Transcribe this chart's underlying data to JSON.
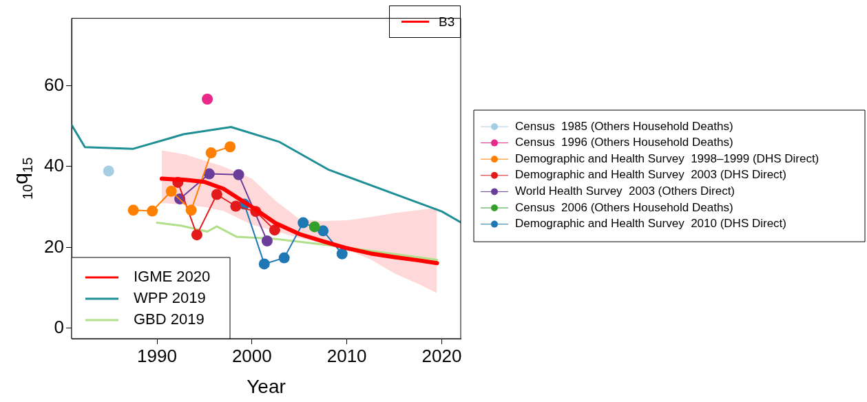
{
  "chart_data": {
    "type": "line",
    "xlabel": "Year",
    "ylabel": "$_{10}$q$_{15}$",
    "xlim": [
      1981,
      2022
    ],
    "ylim": [
      -2.6,
      76.7
    ],
    "xticks": [
      1990,
      2000,
      2010,
      2020
    ],
    "yticks": [
      0,
      20,
      40,
      60
    ],
    "grid": false,
    "legend": "right",
    "annotations": [
      "B3"
    ],
    "series": [
      {
        "name": "IGME 2020",
        "color": "#ff0000",
        "marker": "none",
        "x": [
          1990.5,
          1993,
          1995,
          1997,
          2000,
          2002.5,
          2005,
          2007.5,
          2010,
          2012.5,
          2015,
          2017.5,
          2019.5
        ],
        "values": [
          37,
          36.7,
          36.2,
          34.5,
          30,
          26,
          23.3,
          21.5,
          19.8,
          18.5,
          17.6,
          16.8,
          16.1
        ],
        "upper": [
          44,
          43,
          41.5,
          40,
          37,
          31.5,
          27,
          26.5,
          26.7,
          27.5,
          28.5,
          29.2,
          29.8
        ],
        "lower": [
          31,
          30.5,
          30,
          29,
          25.6,
          24,
          22.3,
          21,
          19.5,
          17,
          13.6,
          11,
          8.7
        ]
      },
      {
        "name": "WPP 2019",
        "color": "#1f8f96",
        "marker": "none",
        "x": [
          1981,
          1982.4,
          1987.5,
          1992.8,
          1997.8,
          2002.9,
          2008.1,
          2020,
          2022
        ],
        "values": [
          50.3,
          44.8,
          44.4,
          48,
          49.8,
          46.1,
          39.2,
          28.9,
          26.2
        ]
      },
      {
        "name": "GBD 2019",
        "color": "#b2df8a",
        "marker": "none",
        "x": [
          1990,
          1992.5,
          1995.3,
          1996.3,
          1998.4,
          2002.4,
          2008.3,
          2019.5
        ],
        "values": [
          26.1,
          25.4,
          23.9,
          25.2,
          22.6,
          22.1,
          20.5,
          16.9
        ]
      },
      {
        "name": "Census  1985 (Others Household Deaths)",
        "type": "scatter",
        "color": "#a6cee3",
        "marker": "circle",
        "x": [
          1984.9
        ],
        "values": [
          38.9
        ]
      },
      {
        "name": "Census  1996 (Others Household Deaths)",
        "type": "scatter",
        "color": "#e7298a",
        "marker": "circle",
        "x": [
          1995.3
        ],
        "values": [
          56.7
        ]
      },
      {
        "name": "Demographic and Health Survey  1998–1999 (DHS Direct)",
        "color": "#ff7f00",
        "marker": "circle",
        "x": [
          1987.5,
          1989.5,
          1991.5,
          1993.6,
          1995.7,
          1997.7
        ],
        "values": [
          29.2,
          29,
          33.9,
          29.2,
          43.4,
          44.9
        ]
      },
      {
        "name": "Demographic and Health Survey  2003 (DHS Direct)",
        "color": "#e31a1c",
        "marker": "circle",
        "x": [
          1992.2,
          1994.2,
          1996.3,
          1998.3,
          2000.4,
          2002.4
        ],
        "values": [
          36.1,
          23.1,
          33.1,
          30.2,
          28.9,
          24.3
        ]
      },
      {
        "name": "World Health Survey  2003 (Others Direct)",
        "color": "#6a3d9a",
        "marker": "circle",
        "x": [
          1992.4,
          1995.5,
          1998.6,
          2001.6
        ],
        "values": [
          32,
          38.2,
          38,
          21.6
        ]
      },
      {
        "name": "Census  2006 (Others Household Deaths)",
        "type": "scatter",
        "color": "#33a02c",
        "marker": "circle",
        "x": [
          2006.6
        ],
        "values": [
          25.1
        ]
      },
      {
        "name": "Demographic and Health Survey  2010 (DHS Direct)",
        "color": "#1f78b4",
        "marker": "circle",
        "x": [
          1999.2,
          2001.3,
          2003.4,
          2005.4,
          2007.5,
          2009.5
        ],
        "values": [
          30.7,
          15.9,
          17.4,
          26.1,
          24.1,
          18.4
        ]
      }
    ]
  }
}
